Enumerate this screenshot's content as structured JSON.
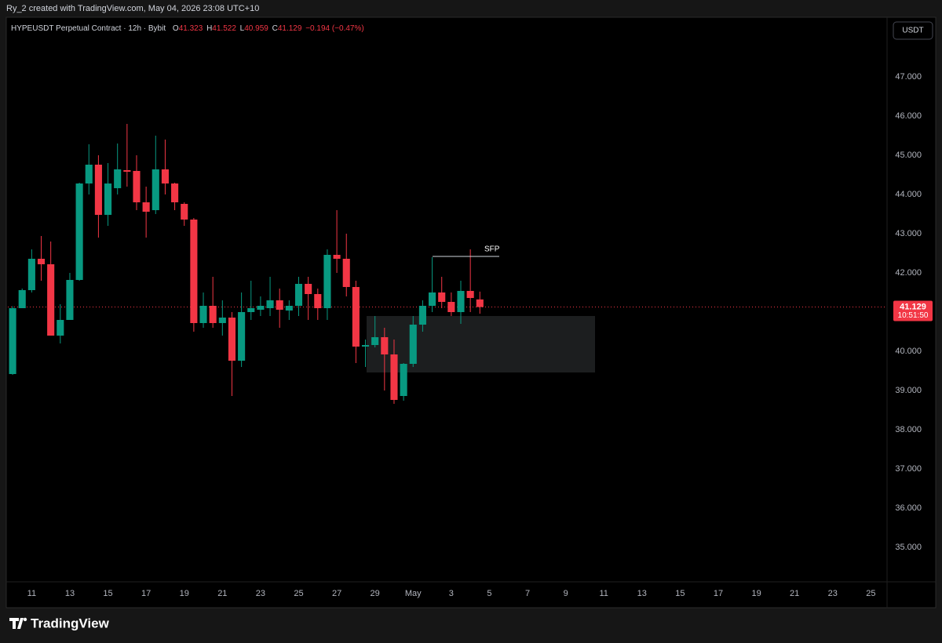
{
  "header": "Ry_2 created with TradingView.com, May 04, 2026 23:08 UTC+10",
  "chart_data": {
    "type": "candlestick",
    "title": "HYPEUSDT Perpetual Contract · 12h · Bybit",
    "ohlc_labels": [
      "O",
      "H",
      "L",
      "C"
    ],
    "change": "−0.194 (−0.47%)",
    "currency": "USDT",
    "countdown": "10:51:50",
    "annotation": "SFP",
    "up_color": "#089981",
    "down_color": "#f23645",
    "grid": false,
    "x": [
      0,
      1,
      2,
      3,
      4,
      5,
      6,
      7,
      8,
      9,
      10,
      11,
      12,
      13,
      14,
      15,
      16,
      17,
      18,
      19,
      20,
      21,
      22,
      23,
      24,
      25,
      26,
      27,
      28,
      29,
      30,
      31,
      32,
      33,
      34,
      35,
      36,
      37,
      38,
      39,
      40,
      41,
      42,
      43,
      44,
      45,
      46,
      47,
      48,
      49
    ],
    "open": [
      39.42,
      41.1,
      41.56,
      42.36,
      42.22,
      40.4,
      40.8,
      41.82,
      44.28,
      44.76,
      43.48,
      44.16,
      44.62,
      44.6,
      43.8,
      43.6,
      44.64,
      44.28,
      43.76,
      43.36,
      40.72,
      41.16,
      40.72,
      40.86,
      39.76,
      41.0,
      41.06,
      41.1,
      41.3,
      41.04,
      41.16,
      41.72,
      41.46,
      41.1,
      42.46,
      42.36,
      41.64,
      40.12,
      40.16,
      40.36,
      39.92,
      38.86,
      39.68,
      40.68,
      41.16,
      41.5,
      41.26,
      41.0,
      41.54,
      41.323
    ],
    "high": [
      41.15,
      41.6,
      42.6,
      42.94,
      42.8,
      41.2,
      42.0,
      44.3,
      45.28,
      45.0,
      44.8,
      45.3,
      45.8,
      45.0,
      44.2,
      45.5,
      45.4,
      44.3,
      43.8,
      43.4,
      41.5,
      41.9,
      41.3,
      41.0,
      41.5,
      41.8,
      41.4,
      41.9,
      41.6,
      41.3,
      41.9,
      41.9,
      41.6,
      42.6,
      43.6,
      43.0,
      41.8,
      40.3,
      40.9,
      40.6,
      40.3,
      39.7,
      40.9,
      41.3,
      42.4,
      41.9,
      41.5,
      41.8,
      42.6,
      41.522
    ],
    "low": [
      39.4,
      41.1,
      41.5,
      41.8,
      40.4,
      40.2,
      40.8,
      41.8,
      44.0,
      42.9,
      43.2,
      44.0,
      44.2,
      43.6,
      42.9,
      43.5,
      44.0,
      43.6,
      43.2,
      40.5,
      40.6,
      40.6,
      40.4,
      38.86,
      39.6,
      40.8,
      40.9,
      40.9,
      40.6,
      40.8,
      40.9,
      40.8,
      40.8,
      40.8,
      42.0,
      41.4,
      39.7,
      39.6,
      40.1,
      39.0,
      38.66,
      38.74,
      39.6,
      40.5,
      41.0,
      41.1,
      40.9,
      40.7,
      41.0,
      40.959
    ],
    "close": [
      41.1,
      41.56,
      42.36,
      42.22,
      40.4,
      40.8,
      41.82,
      44.28,
      44.76,
      43.48,
      44.28,
      44.64,
      44.58,
      43.8,
      43.56,
      44.64,
      44.28,
      43.8,
      43.36,
      40.72,
      41.16,
      40.72,
      40.86,
      39.76,
      41.0,
      41.1,
      41.16,
      41.3,
      41.06,
      41.16,
      41.72,
      41.46,
      41.1,
      42.46,
      42.36,
      41.64,
      40.12,
      40.16,
      40.36,
      39.92,
      38.76,
      39.68,
      40.68,
      41.16,
      41.5,
      41.26,
      41.0,
      41.54,
      41.36,
      41.129
    ],
    "xlim": [
      -0.5,
      91.7
    ],
    "xticks": [
      {
        "value": 2,
        "label": "11"
      },
      {
        "value": 6,
        "label": "13"
      },
      {
        "value": 10,
        "label": "15"
      },
      {
        "value": 14,
        "label": "17"
      },
      {
        "value": 18,
        "label": "19"
      },
      {
        "value": 22,
        "label": "21"
      },
      {
        "value": 26,
        "label": "23"
      },
      {
        "value": 30,
        "label": "25"
      },
      {
        "value": 34,
        "label": "27"
      },
      {
        "value": 38,
        "label": "29"
      },
      {
        "value": 42,
        "label": "May"
      },
      {
        "value": 46,
        "label": "3"
      },
      {
        "value": 50,
        "label": "5"
      },
      {
        "value": 54,
        "label": "7"
      },
      {
        "value": 58,
        "label": "9"
      },
      {
        "value": 62,
        "label": "11"
      },
      {
        "value": 66,
        "label": "13"
      },
      {
        "value": 70,
        "label": "15"
      },
      {
        "value": 74,
        "label": "17"
      },
      {
        "value": 78,
        "label": "19"
      },
      {
        "value": 82,
        "label": "21"
      },
      {
        "value": 86,
        "label": "23"
      },
      {
        "value": 90,
        "label": "25"
      }
    ],
    "ylim": [
      34.16,
      48.52
    ],
    "yticks": [
      {
        "value": 35,
        "label": "35.000"
      },
      {
        "value": 36,
        "label": "36.000"
      },
      {
        "value": 37,
        "label": "37.000"
      },
      {
        "value": 38,
        "label": "38.000"
      },
      {
        "value": 39,
        "label": "39.000"
      },
      {
        "value": 40,
        "label": "40.000"
      },
      {
        "value": 41,
        "label": "41.000"
      },
      {
        "value": 42,
        "label": "42.000"
      },
      {
        "value": 43,
        "label": "43.000"
      },
      {
        "value": 44,
        "label": "44.000"
      },
      {
        "value": 45,
        "label": "45.000"
      },
      {
        "value": 46,
        "label": "46.000"
      },
      {
        "value": 47,
        "label": "47.000"
      }
    ]
  },
  "footer": "TradingView"
}
